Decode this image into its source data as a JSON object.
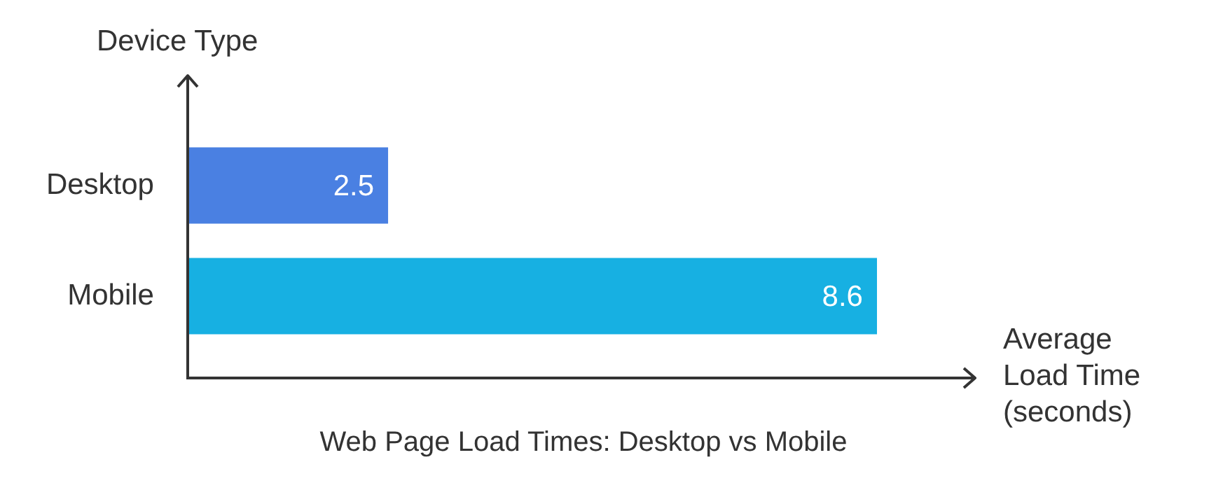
{
  "chart_data": {
    "type": "bar",
    "orientation": "horizontal",
    "title": "Web Page Load Times: Desktop vs Mobile",
    "xlabel": "Average Load Time (seconds)",
    "ylabel": "Device Type",
    "categories": [
      "Desktop",
      "Mobile"
    ],
    "values": [
      2.5,
      8.6
    ],
    "colors": [
      "#4a80e2",
      "#17b0e2"
    ],
    "data_labels": true,
    "grid": false,
    "legend": false
  }
}
